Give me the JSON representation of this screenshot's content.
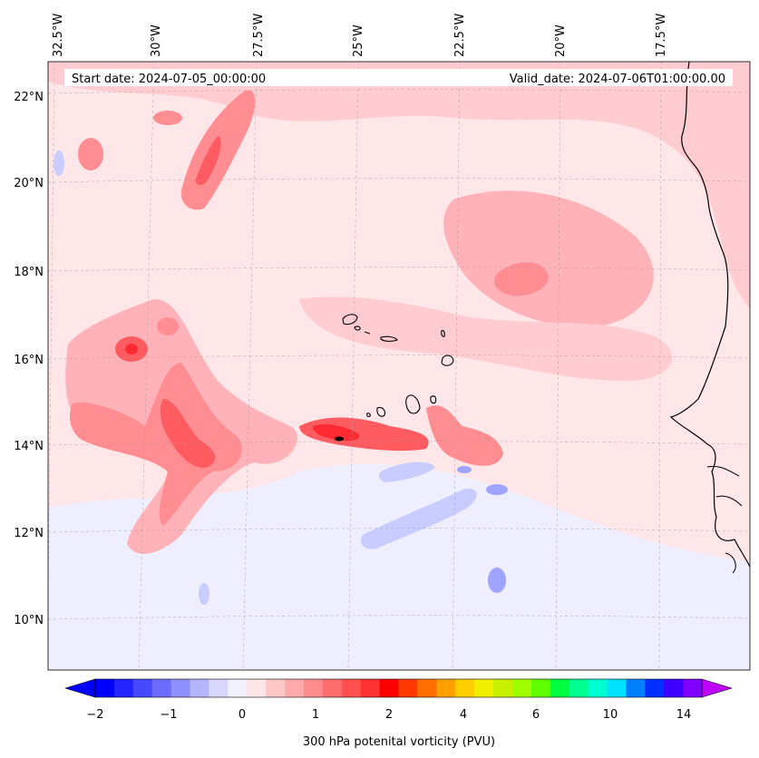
{
  "header": {
    "start_date": "Start date: 2024-07-05_00:00:00",
    "valid_date": "Valid_date: 2024-07-06T01:00:00.00"
  },
  "map": {
    "lon_labels": [
      "32.5°W",
      "30°W",
      "27.5°W",
      "25°W",
      "22.5°W",
      "20°W",
      "17.5°W"
    ],
    "lat_labels": [
      "22°N",
      "20°N",
      "18°N",
      "16°N",
      "14°N",
      "12°N",
      "10°N"
    ],
    "field": "300 hPa potential vorticity",
    "colors": {
      "very_light_pink": "#ffe6e8",
      "light_pink": "#ffcdd1",
      "pink": "#ffb3b8",
      "salmon": "#ff8d91",
      "red": "#ff5c62",
      "strong_red": "#ff2a32",
      "dark": "#000000",
      "light_blue": "#e6e8ff",
      "blue": "#c8ccff",
      "mid_blue": "#9ea4ff"
    }
  },
  "colorbar": {
    "title": "300 hPa potenital vorticity (PVU)",
    "tick_labels": [
      "−2",
      "−1",
      "0",
      "1",
      "2",
      "4",
      "6",
      "10",
      "14"
    ],
    "colors": [
      "#0000ff",
      "#2424ff",
      "#4848ff",
      "#6c6cff",
      "#9090ff",
      "#b4b4ff",
      "#d8d8ff",
      "#f0f0ff",
      "#ffe6e6",
      "#ffc8c8",
      "#ffaaaa",
      "#ff8c8c",
      "#ff6e6e",
      "#ff5050",
      "#ff3232",
      "#ff0000",
      "#ff3a00",
      "#ff7000",
      "#ffa000",
      "#ffd000",
      "#f0f000",
      "#c8f000",
      "#a0ff00",
      "#60ff00",
      "#00ff40",
      "#00ff90",
      "#00ffd0",
      "#00e0ff",
      "#0080ff",
      "#0030ff",
      "#4000ff",
      "#8000ff"
    ]
  }
}
